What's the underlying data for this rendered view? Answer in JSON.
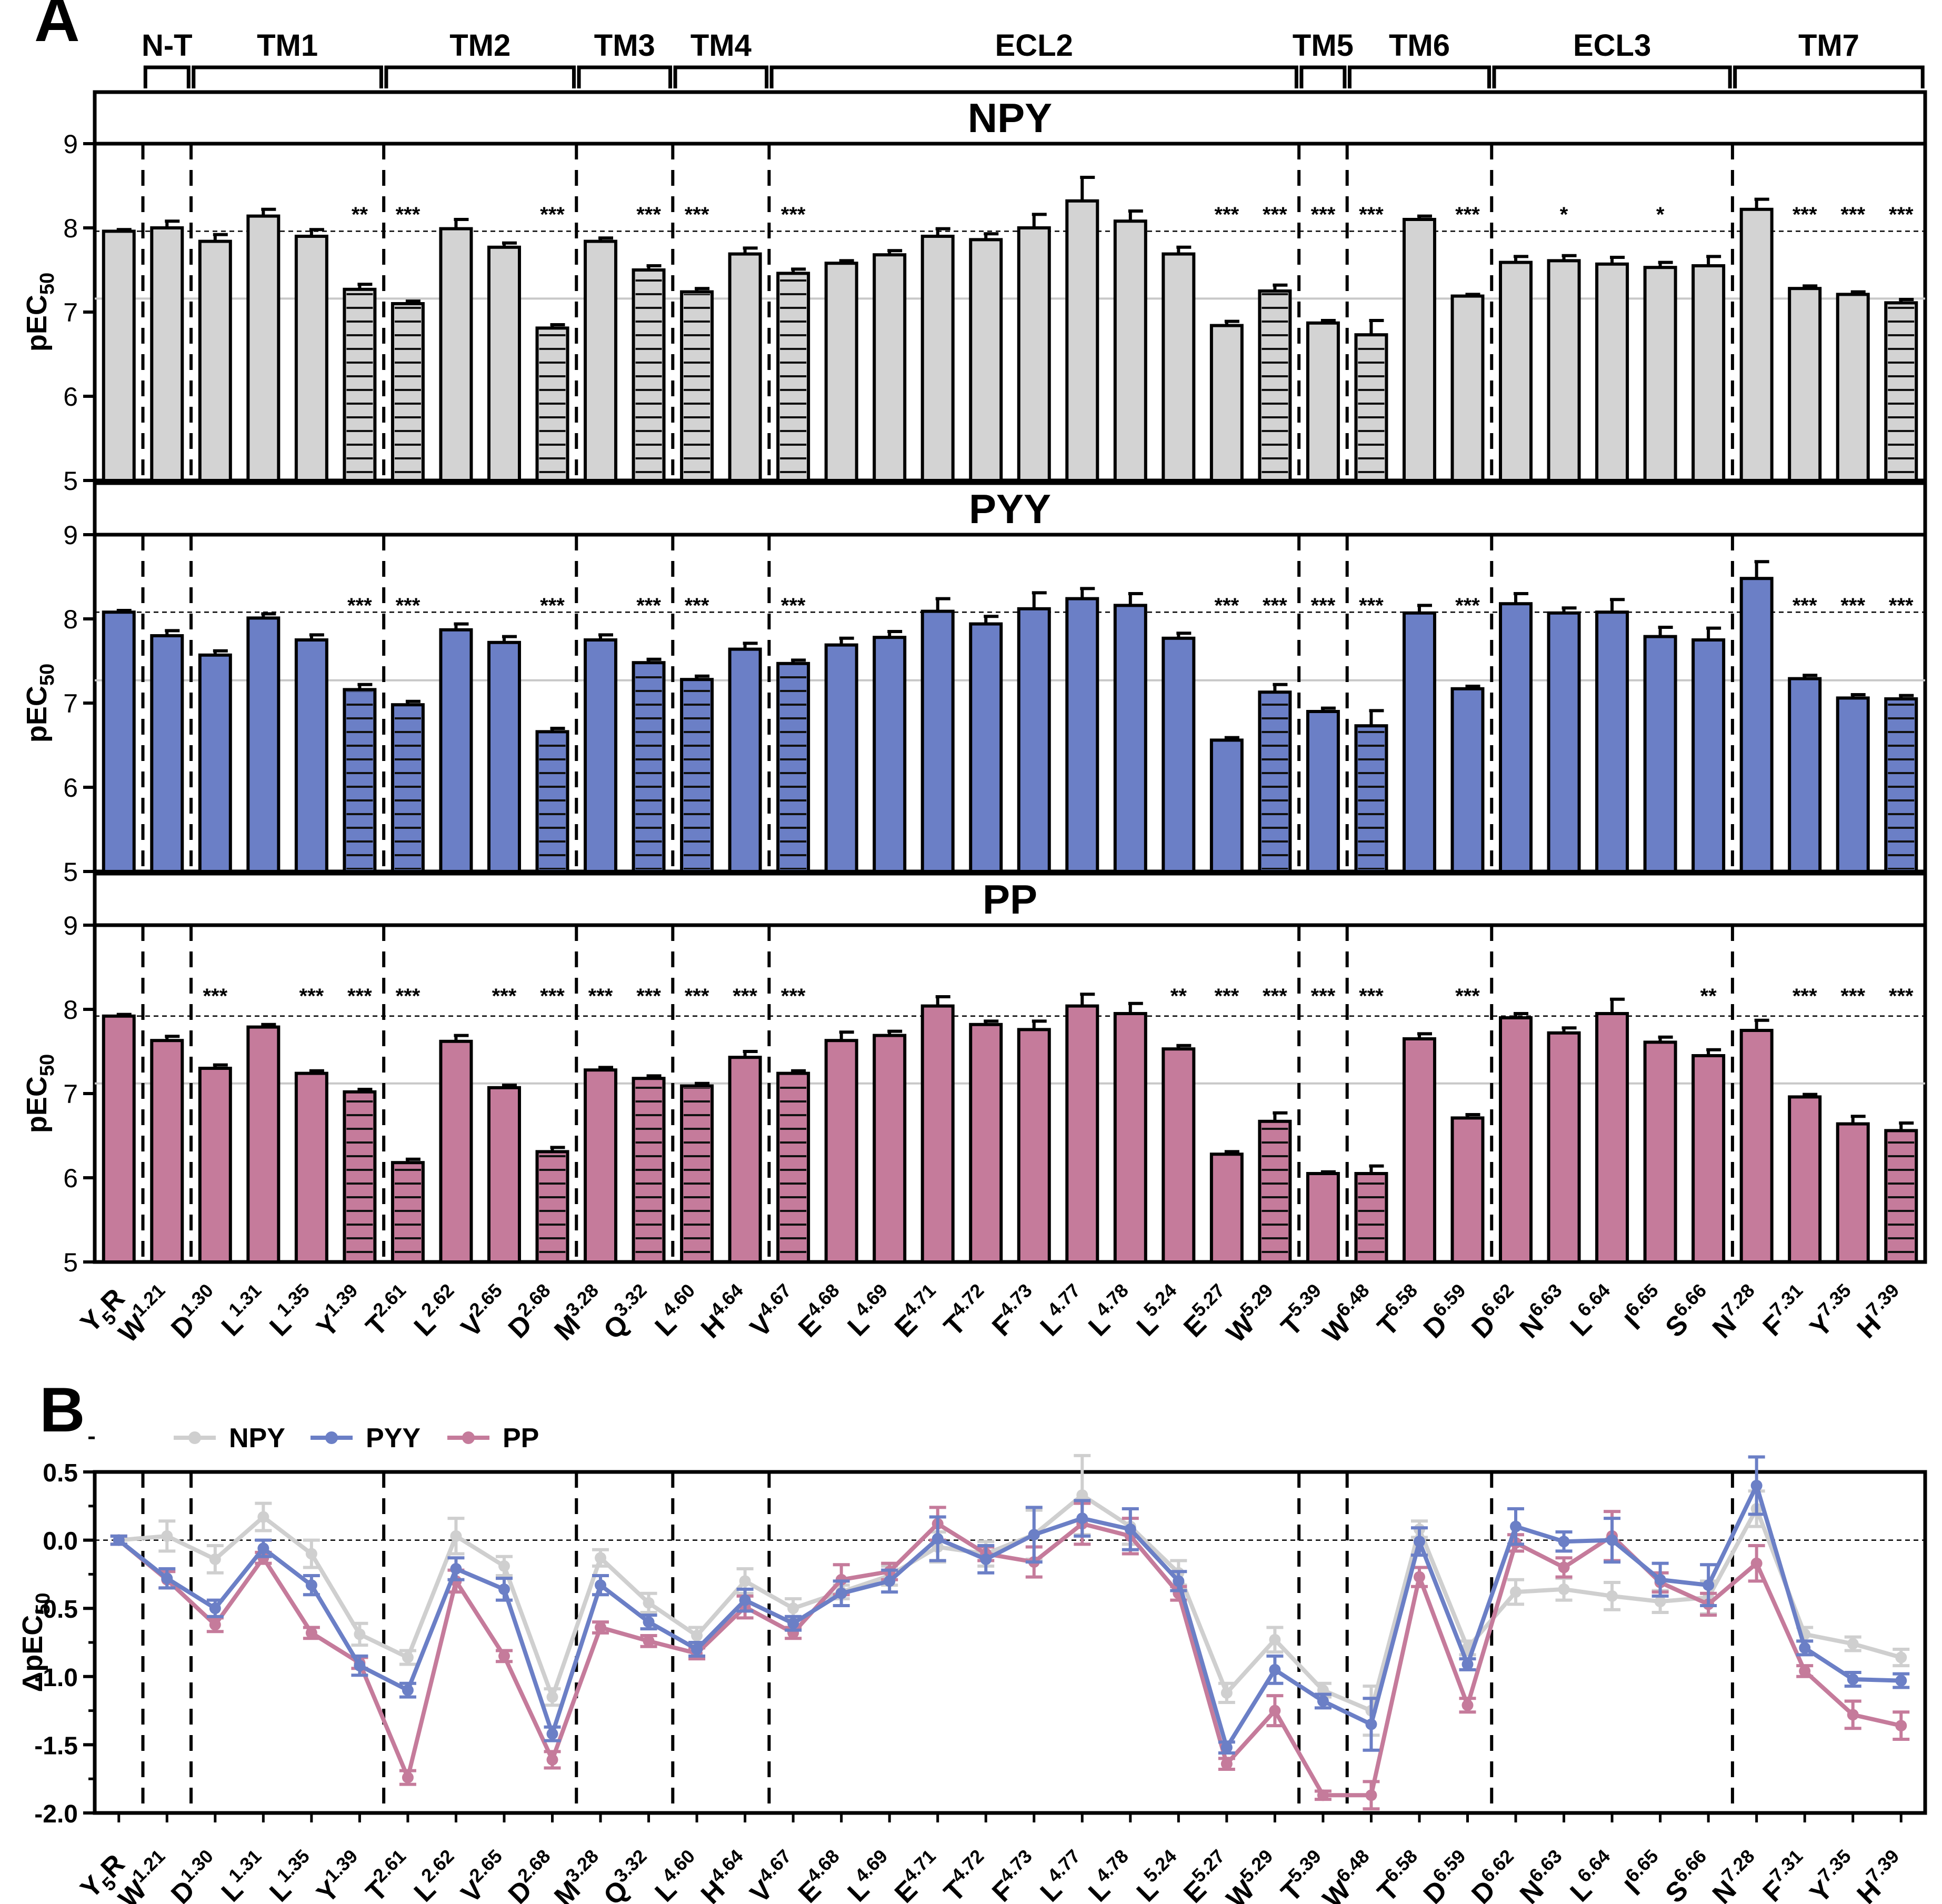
{
  "panel_labels": {
    "a": "A",
    "b": "B"
  },
  "regions": [
    {
      "label": "N-T",
      "from": 1,
      "to": 1
    },
    {
      "label": "TM1",
      "from": 2,
      "to": 5
    },
    {
      "label": "TM2",
      "from": 6,
      "to": 9
    },
    {
      "label": "TM3",
      "from": 10,
      "to": 11
    },
    {
      "label": "TM4",
      "from": 12,
      "to": 13
    },
    {
      "label": "ECL2",
      "from": 14,
      "to": 24
    },
    {
      "label": "TM5",
      "from": 25,
      "to": 25
    },
    {
      "label": "TM6",
      "from": 26,
      "to": 28
    },
    {
      "label": "ECL3",
      "from": 29,
      "to": 33
    },
    {
      "label": "TM7",
      "from": 34,
      "to": 37
    }
  ],
  "residues": [
    {
      "aa": "Y",
      "sub": "5",
      "sup": "",
      "tail": "R"
    },
    {
      "aa": "W",
      "sup": "1.21"
    },
    {
      "aa": "D",
      "sup": "1.30"
    },
    {
      "aa": "L",
      "sup": "1.31"
    },
    {
      "aa": "L",
      "sup": "1.35"
    },
    {
      "aa": "Y",
      "sup": "1.39"
    },
    {
      "aa": "T",
      "sup": "2.61"
    },
    {
      "aa": "L",
      "sup": "2.62"
    },
    {
      "aa": "V",
      "sup": "2.65"
    },
    {
      "aa": "D",
      "sup": "2.68"
    },
    {
      "aa": "M",
      "sup": "3.28"
    },
    {
      "aa": "Q",
      "sup": "3.32"
    },
    {
      "aa": "L",
      "sup": "4.60"
    },
    {
      "aa": "H",
      "sup": "4.64"
    },
    {
      "aa": "V",
      "sup": "4.67"
    },
    {
      "aa": "E",
      "sup": "4.68"
    },
    {
      "aa": "L",
      "sup": "4.69"
    },
    {
      "aa": "E",
      "sup": "4.71"
    },
    {
      "aa": "T",
      "sup": "4.72"
    },
    {
      "aa": "F",
      "sup": "4.73"
    },
    {
      "aa": "L",
      "sup": "4.77"
    },
    {
      "aa": "L",
      "sup": "4.78"
    },
    {
      "aa": "L",
      "sup": "5.24"
    },
    {
      "aa": "E",
      "sup": "5.27"
    },
    {
      "aa": "W",
      "sup": "5.29"
    },
    {
      "aa": "T",
      "sup": "5.39"
    },
    {
      "aa": "W",
      "sup": "6.48"
    },
    {
      "aa": "T",
      "sup": "6.58"
    },
    {
      "aa": "D",
      "sup": "6.59"
    },
    {
      "aa": "D",
      "sup": "6.62"
    },
    {
      "aa": "N",
      "sup": "6.63"
    },
    {
      "aa": "L",
      "sup": "6.64"
    },
    {
      "aa": "I",
      "sup": "6.65"
    },
    {
      "aa": "S",
      "sup": "6.66"
    },
    {
      "aa": "N",
      "sup": "7.28"
    },
    {
      "aa": "F",
      "sup": "7.31"
    },
    {
      "aa": "Y",
      "sup": "7.35"
    },
    {
      "aa": "H",
      "sup": "7.39"
    }
  ],
  "chart_data": [
    {
      "type": "bar",
      "panel": "A",
      "ylabel": "pEC50",
      "ylabel_main": "pEC",
      "ylabel_sub": "50",
      "ylim": [
        5,
        9
      ],
      "yticks": [
        "5",
        "6",
        "7",
        "8",
        "9"
      ],
      "reference_wt": 7.95,
      "reference_gray": 7.15,
      "hatched_indices": [
        5,
        6,
        9,
        11,
        12,
        14,
        24,
        26,
        37
      ],
      "subpanels": [
        {
          "title": "NPY",
          "color": "#d3d3d3",
          "reference_wt": 7.96,
          "reference_gray": 7.16,
          "values": [
            7.96,
            8.0,
            7.84,
            8.14,
            7.9,
            7.27,
            7.1,
            7.99,
            7.77,
            6.81,
            7.84,
            7.5,
            7.24,
            7.69,
            7.46,
            7.58,
            7.68,
            7.9,
            7.86,
            8.0,
            8.32,
            8.08,
            7.69,
            6.84,
            7.25,
            6.87,
            6.73,
            8.1,
            7.19,
            7.59,
            7.61,
            7.57,
            7.53,
            7.55,
            8.22,
            7.28,
            7.21,
            7.11
          ],
          "errors": [
            0.02,
            0.08,
            0.08,
            0.08,
            0.08,
            0.06,
            0.03,
            0.11,
            0.05,
            0.04,
            0.04,
            0.05,
            0.04,
            0.07,
            0.05,
            0.03,
            0.05,
            0.09,
            0.07,
            0.16,
            0.28,
            0.12,
            0.08,
            0.05,
            0.07,
            0.03,
            0.17,
            0.04,
            0.02,
            0.07,
            0.06,
            0.08,
            0.06,
            0.11,
            0.12,
            0.03,
            0.03,
            0.04
          ],
          "stars": [
            "",
            "",
            "",
            "",
            "",
            "**",
            "***",
            "",
            "",
            "***",
            "",
            "***",
            "***",
            "",
            "***",
            "",
            "",
            "",
            "",
            "",
            "",
            "",
            "",
            "***",
            "***",
            "***",
            "***",
            "",
            "***",
            "",
            "*",
            "",
            "*",
            "",
            "",
            "***",
            "***",
            "***"
          ]
        },
        {
          "title": "PYY",
          "color": "#6b7fc6",
          "reference_wt": 8.08,
          "reference_gray": 7.27,
          "values": [
            8.08,
            7.8,
            7.57,
            8.01,
            7.75,
            7.16,
            6.98,
            7.87,
            7.72,
            6.66,
            7.75,
            7.48,
            7.28,
            7.64,
            7.47,
            7.69,
            7.78,
            8.09,
            7.94,
            8.12,
            8.24,
            8.16,
            7.77,
            6.56,
            7.13,
            6.9,
            6.73,
            8.07,
            7.17,
            8.18,
            8.07,
            8.08,
            7.79,
            7.75,
            8.48,
            7.29,
            7.06,
            7.05
          ],
          "errors": [
            0.02,
            0.06,
            0.05,
            0.05,
            0.06,
            0.06,
            0.04,
            0.07,
            0.07,
            0.04,
            0.06,
            0.04,
            0.04,
            0.07,
            0.04,
            0.08,
            0.07,
            0.15,
            0.09,
            0.19,
            0.12,
            0.14,
            0.06,
            0.03,
            0.09,
            0.04,
            0.18,
            0.09,
            0.03,
            0.12,
            0.06,
            0.15,
            0.11,
            0.14,
            0.2,
            0.04,
            0.04,
            0.04
          ],
          "stars": [
            "",
            "",
            "",
            "",
            "",
            "***",
            "***",
            "",
            "",
            "***",
            "",
            "***",
            "***",
            "",
            "***",
            "",
            "",
            "",
            "",
            "",
            "",
            "",
            "",
            "***",
            "***",
            "***",
            "***",
            "",
            "***",
            "",
            "",
            "",
            "",
            "",
            "",
            "***",
            "***",
            "***"
          ]
        },
        {
          "title": "PP",
          "color": "#c57b9b",
          "reference_wt": 7.92,
          "reference_gray": 7.12,
          "values": [
            7.92,
            7.63,
            7.3,
            7.79,
            7.24,
            7.02,
            6.18,
            7.62,
            7.07,
            6.31,
            7.28,
            7.18,
            7.09,
            7.43,
            7.24,
            7.63,
            7.69,
            8.04,
            7.82,
            7.76,
            8.04,
            7.95,
            7.53,
            6.28,
            6.67,
            6.05,
            6.05,
            7.65,
            6.71,
            7.9,
            7.72,
            7.95,
            7.61,
            7.45,
            7.75,
            6.96,
            6.64,
            6.56
          ],
          "errors": [
            0.02,
            0.05,
            0.04,
            0.03,
            0.03,
            0.03,
            0.04,
            0.07,
            0.03,
            0.05,
            0.03,
            0.03,
            0.03,
            0.07,
            0.03,
            0.1,
            0.05,
            0.11,
            0.04,
            0.1,
            0.14,
            0.12,
            0.04,
            0.03,
            0.1,
            0.02,
            0.09,
            0.06,
            0.04,
            0.05,
            0.06,
            0.17,
            0.06,
            0.07,
            0.12,
            0.03,
            0.09,
            0.09
          ],
          "stars": [
            "",
            "",
            "***",
            "",
            "***",
            "***",
            "***",
            "",
            "***",
            "***",
            "***",
            "***",
            "***",
            "***",
            "***",
            "",
            "",
            "",
            "",
            "",
            "",
            "",
            "**",
            "***",
            "***",
            "***",
            "***",
            "",
            "***",
            "",
            "",
            "",
            "",
            "**",
            "",
            "***",
            "***",
            "***"
          ]
        }
      ]
    },
    {
      "type": "line",
      "panel": "B",
      "ylabel": "ΔpEC50",
      "ylabel_prefix": "ΔpEC",
      "ylabel_sub": "50",
      "ylim": [
        -2.0,
        0.5
      ],
      "yticks": [
        "-2.0",
        "-1.5",
        "-1.0",
        "-0.5",
        "0.0",
        "0.5"
      ],
      "series": [
        {
          "name": "NPY",
          "color": "#cfcfcf",
          "values": [
            0.0,
            0.03,
            -0.14,
            0.17,
            -0.1,
            -0.69,
            -0.86,
            0.03,
            -0.19,
            -1.15,
            -0.13,
            -0.46,
            -0.7,
            -0.3,
            -0.5,
            -0.38,
            -0.26,
            -0.05,
            -0.1,
            0.04,
            0.33,
            0.1,
            -0.24,
            -1.12,
            -0.73,
            -1.1,
            -1.25,
            0.08,
            -0.79,
            -0.38,
            -0.36,
            -0.41,
            -0.45,
            -0.42,
            0.23,
            -0.69,
            -0.76,
            -0.86
          ],
          "errors": [
            0.03,
            0.11,
            0.1,
            0.1,
            0.1,
            0.08,
            0.05,
            0.13,
            0.07,
            0.06,
            0.06,
            0.07,
            0.06,
            0.09,
            0.07,
            0.05,
            0.07,
            0.11,
            0.09,
            0.18,
            0.29,
            0.13,
            0.09,
            0.07,
            0.09,
            0.05,
            0.18,
            0.06,
            0.05,
            0.09,
            0.08,
            0.1,
            0.08,
            0.12,
            0.13,
            0.05,
            0.05,
            0.06
          ]
        },
        {
          "name": "PYY",
          "color": "#6b7fc6",
          "values": [
            0.0,
            -0.28,
            -0.5,
            -0.06,
            -0.33,
            -0.92,
            -1.1,
            -0.21,
            -0.36,
            -1.42,
            -0.33,
            -0.6,
            -0.8,
            -0.44,
            -0.61,
            -0.39,
            -0.3,
            0.01,
            -0.14,
            0.04,
            0.16,
            0.08,
            -0.3,
            -1.52,
            -0.95,
            -1.18,
            -1.35,
            -0.01,
            -0.91,
            0.1,
            -0.01,
            0.0,
            -0.29,
            -0.33,
            0.4,
            -0.79,
            -1.02,
            -1.03
          ],
          "errors": [
            0.03,
            0.07,
            0.06,
            0.06,
            0.07,
            0.07,
            0.05,
            0.08,
            0.08,
            0.05,
            0.07,
            0.05,
            0.05,
            0.08,
            0.05,
            0.09,
            0.08,
            0.16,
            0.1,
            0.2,
            0.13,
            0.15,
            0.07,
            0.04,
            0.1,
            0.05,
            0.19,
            0.1,
            0.04,
            0.13,
            0.07,
            0.16,
            0.12,
            0.15,
            0.21,
            0.05,
            0.05,
            0.05
          ]
        },
        {
          "name": "PP",
          "color": "#c57b9b",
          "values": [
            0.0,
            -0.29,
            -0.62,
            -0.13,
            -0.68,
            -0.9,
            -1.74,
            -0.3,
            -0.85,
            -1.61,
            -0.64,
            -0.74,
            -0.83,
            -0.49,
            -0.68,
            -0.29,
            -0.23,
            0.12,
            -0.1,
            -0.16,
            0.12,
            0.03,
            -0.39,
            -1.64,
            -1.25,
            -1.87,
            -1.87,
            -0.27,
            -1.21,
            -0.02,
            -0.2,
            0.03,
            -0.31,
            -0.47,
            -0.17,
            -0.96,
            -1.28,
            -1.36
          ],
          "errors": [
            0.03,
            0.06,
            0.05,
            0.04,
            0.04,
            0.04,
            0.05,
            0.08,
            0.04,
            0.06,
            0.04,
            0.04,
            0.04,
            0.08,
            0.04,
            0.11,
            0.06,
            0.12,
            0.05,
            0.11,
            0.15,
            0.13,
            0.05,
            0.04,
            0.11,
            0.03,
            0.1,
            0.07,
            0.05,
            0.06,
            0.07,
            0.18,
            0.07,
            0.08,
            0.13,
            0.04,
            0.1,
            0.1
          ]
        }
      ]
    }
  ]
}
